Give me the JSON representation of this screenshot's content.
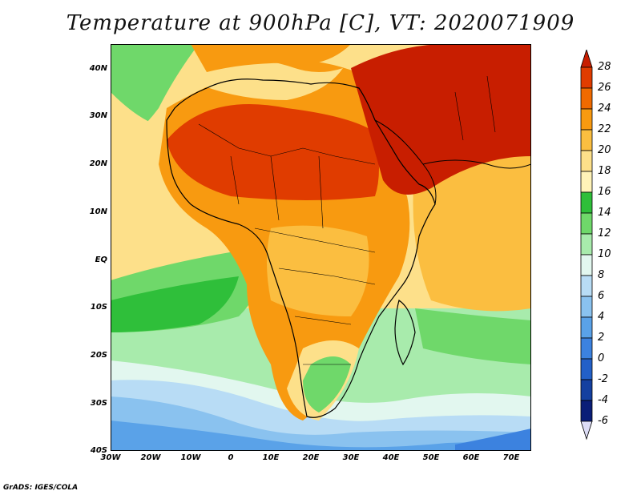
{
  "title": "Temperature at 900hPa [C], VT: 2020071909",
  "credit": "GrADS: IGES/COLA",
  "lat_labels": [
    "40N",
    "30N",
    "20N",
    "10N",
    "EQ",
    "10S",
    "20S",
    "30S",
    "40S"
  ],
  "lon_labels": [
    "30W",
    "20W",
    "10W",
    "0",
    "10E",
    "20E",
    "30E",
    "40E",
    "50E",
    "60E",
    "70E"
  ],
  "colorbar": {
    "labels": [
      "28",
      "26",
      "24",
      "22",
      "20",
      "18",
      "16",
      "14",
      "12",
      "10",
      "8",
      "6",
      "4",
      "2",
      "0",
      "-2",
      "-4",
      "-6"
    ],
    "colors": [
      "#c81e00",
      "#e03c00",
      "#f06a00",
      "#f89a10",
      "#fbbe40",
      "#fde08a",
      "#fff3b8",
      "#2fbf3a",
      "#6fd86a",
      "#a8ebac",
      "#e2f7ef",
      "#b8dcf5",
      "#8ac2ef",
      "#5aa2e8",
      "#3c82df",
      "#2360c8",
      "#1440a0",
      "#0a1e78",
      "#dcdcf5"
    ]
  },
  "map_extent": {
    "lon": [
      -30,
      75
    ],
    "lat": [
      -40,
      45
    ]
  },
  "temperature_field": {
    "sahara_north_africa": "26-28",
    "arabian_peninsula_middle_east": "26-28",
    "sahel": "22-26",
    "central_africa": "20-22",
    "equatorial_atlantic": "12-16",
    "south_atlantic_southern_ocean": "-2 to 8",
    "indian_ocean": "18-20",
    "southern_africa_interior": "12-16"
  }
}
